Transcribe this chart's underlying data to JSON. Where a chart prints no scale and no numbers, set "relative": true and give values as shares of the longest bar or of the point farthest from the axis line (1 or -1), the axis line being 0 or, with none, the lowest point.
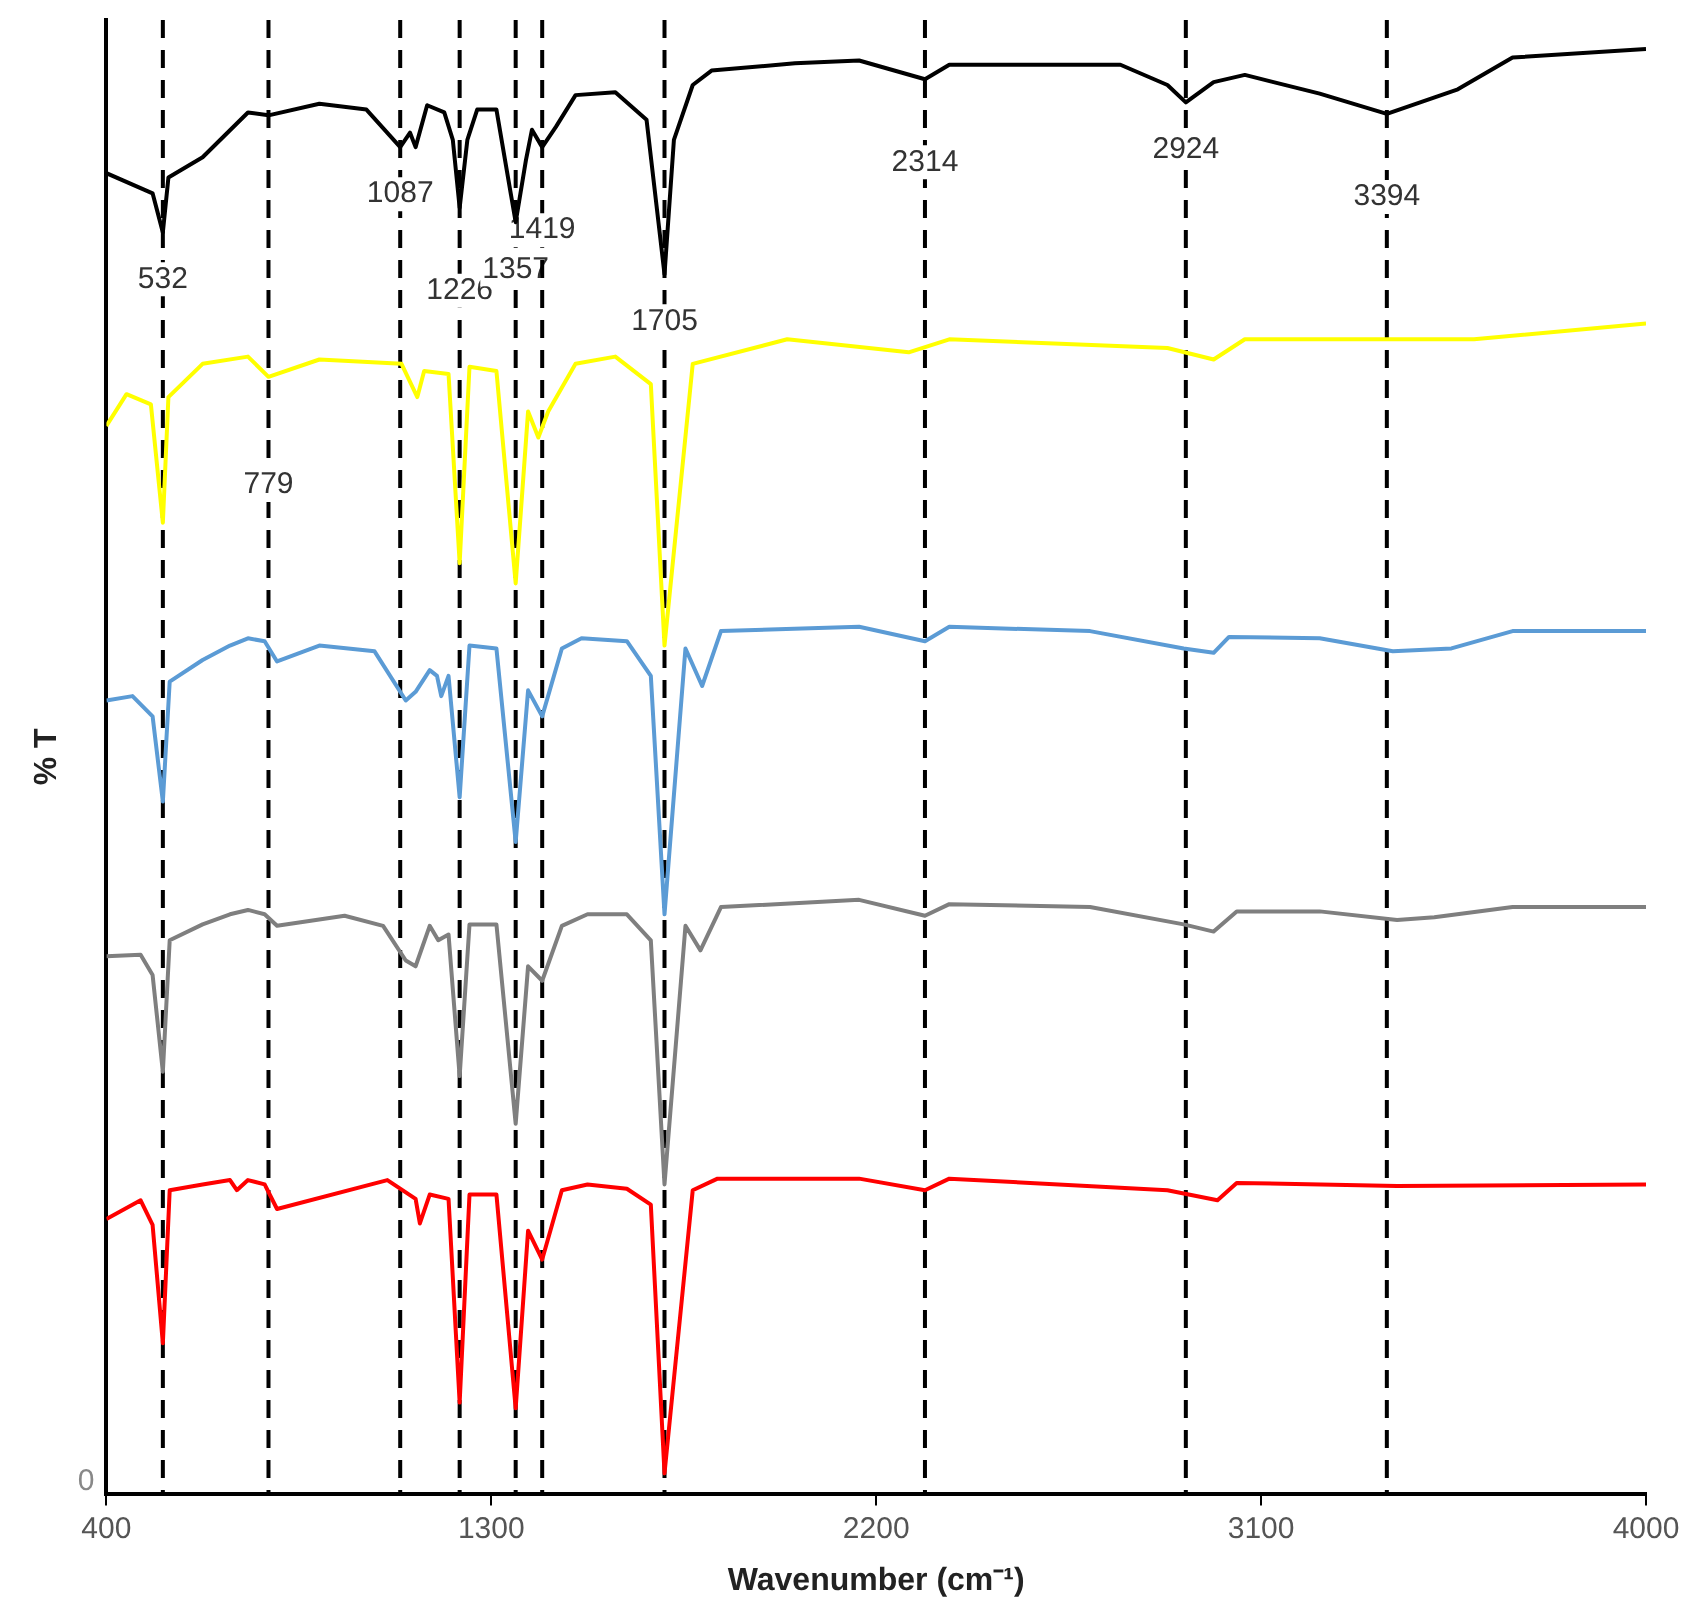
{
  "chart_data": {
    "type": "line",
    "xlabel": "Wavenumber (cm⁻¹)",
    "ylabel": "% T",
    "relative": true,
    "xlim": [
      400,
      4000
    ],
    "xticks": [
      400,
      1300,
      2200,
      3100,
      4000
    ],
    "grid": false,
    "legend": false,
    "marker": "none",
    "line_style": "solid",
    "annotations": [
      "0"
    ],
    "ref_lines": [
      {
        "axis": "x",
        "value": 532,
        "label": "532",
        "color": "#000000",
        "line_style": "dashed"
      },
      {
        "axis": "x",
        "value": 779,
        "label": "779",
        "color": "#000000",
        "line_style": "dashed"
      },
      {
        "axis": "x",
        "value": 1087,
        "label": "1087",
        "color": "#000000",
        "line_style": "dashed"
      },
      {
        "axis": "x",
        "value": 1226,
        "label": "1226",
        "color": "#000000",
        "line_style": "dashed"
      },
      {
        "axis": "x",
        "value": 1357,
        "label": "1357",
        "color": "#000000",
        "line_style": "dashed"
      },
      {
        "axis": "x",
        "value": 1419,
        "label": "1419",
        "color": "#000000",
        "line_style": "dashed"
      },
      {
        "axis": "x",
        "value": 1705,
        "label": "1705",
        "color": "#000000",
        "line_style": "dashed"
      },
      {
        "axis": "x",
        "value": 2314,
        "label": "2314",
        "color": "#000000",
        "line_style": "dashed"
      },
      {
        "axis": "x",
        "value": 2924,
        "label": "2924",
        "color": "#000000",
        "line_style": "dashed"
      },
      {
        "axis": "x",
        "value": 3394,
        "label": "3394",
        "color": "#000000",
        "line_style": "dashed"
      }
    ],
    "series": [
      {
        "color": "#000000",
        "x": [
          400,
          508,
          532,
          545,
          625,
          731,
          779,
          898,
          1008,
          1087,
          1110,
          1123,
          1150,
          1190,
          1210,
          1226,
          1244,
          1267,
          1312,
          1357,
          1381,
          1395,
          1419,
          1451,
          1497,
          1590,
          1663,
          1705,
          1727,
          1771,
          1815,
          2010,
          2160,
          2314,
          2371,
          2771,
          2881,
          2924,
          2989,
          3062,
          3237,
          3394,
          3560,
          3688,
          4000
        ],
        "values": [
          0.914,
          0.9,
          0.873,
          0.911,
          0.925,
          0.956,
          0.954,
          0.962,
          0.958,
          0.932,
          0.942,
          0.932,
          0.961,
          0.956,
          0.937,
          0.89,
          0.937,
          0.958,
          0.958,
          0.88,
          0.923,
          0.944,
          0.932,
          0.946,
          0.968,
          0.97,
          0.951,
          0.844,
          0.937,
          0.975,
          0.985,
          0.99,
          0.992,
          0.979,
          0.989,
          0.989,
          0.975,
          0.963,
          0.977,
          0.982,
          0.969,
          0.955,
          0.972,
          0.994,
          1
        ]
      },
      {
        "color": "#ffff00",
        "x": [
          400,
          447,
          504,
          532,
          545,
          625,
          731,
          779,
          898,
          1090,
          1127,
          1143,
          1200,
          1226,
          1249,
          1312,
          1357,
          1386,
          1410,
          1433,
          1497,
          1590,
          1673,
          1705,
          1771,
          1992,
          2276,
          2371,
          2881,
          2989,
          3062,
          3598,
          4000
        ],
        "values": [
          0.739,
          0.761,
          0.754,
          0.672,
          0.759,
          0.782,
          0.787,
          0.773,
          0.785,
          0.782,
          0.759,
          0.777,
          0.775,
          0.644,
          0.78,
          0.777,
          0.63,
          0.749,
          0.731,
          0.749,
          0.782,
          0.787,
          0.768,
          0.587,
          0.782,
          0.799,
          0.79,
          0.799,
          0.793,
          0.785,
          0.799,
          0.799,
          0.81
        ]
      },
      {
        "color": "#5b9bd5",
        "x": [
          400,
          461,
          508,
          532,
          548,
          625,
          689,
          731,
          770,
          799,
          898,
          1027,
          1100,
          1123,
          1156,
          1173,
          1183,
          1200,
          1226,
          1249,
          1312,
          1357,
          1386,
          1419,
          1465,
          1511,
          1617,
          1673,
          1705,
          1754,
          1793,
          1837,
          2160,
          2314,
          2371,
          2700,
          2919,
          2989,
          3025,
          3237,
          3408,
          3545,
          3688,
          4000
        ],
        "values": [
          0.549,
          0.552,
          0.538,
          0.479,
          0.562,
          0.577,
          0.587,
          0.592,
          0.59,
          0.576,
          0.587,
          0.583,
          0.549,
          0.555,
          0.57,
          0.566,
          0.552,
          0.566,
          0.482,
          0.587,
          0.585,
          0.451,
          0.556,
          0.538,
          0.585,
          0.592,
          0.59,
          0.566,
          0.401,
          0.585,
          0.559,
          0.597,
          0.6,
          0.59,
          0.6,
          0.597,
          0.585,
          0.582,
          0.593,
          0.592,
          0.583,
          0.585,
          0.597,
          0.597
        ]
      },
      {
        "color": "#7f7f7f",
        "x": [
          400,
          480,
          508,
          532,
          548,
          625,
          689,
          731,
          770,
          799,
          957,
          1047,
          1100,
          1123,
          1156,
          1176,
          1200,
          1226,
          1249,
          1312,
          1357,
          1386,
          1419,
          1465,
          1525,
          1617,
          1673,
          1705,
          1754,
          1789,
          1837,
          2160,
          2314,
          2371,
          2700,
          2919,
          2989,
          3043,
          3237,
          3418,
          3505,
          3688,
          4000
        ],
        "values": [
          0.372,
          0.373,
          0.359,
          0.292,
          0.383,
          0.394,
          0.401,
          0.404,
          0.401,
          0.393,
          0.4,
          0.393,
          0.369,
          0.365,
          0.393,
          0.383,
          0.387,
          0.289,
          0.394,
          0.394,
          0.256,
          0.365,
          0.355,
          0.393,
          0.401,
          0.401,
          0.383,
          0.214,
          0.393,
          0.376,
          0.406,
          0.411,
          0.4,
          0.408,
          0.406,
          0.394,
          0.389,
          0.403,
          0.403,
          0.397,
          0.399,
          0.406,
          0.406
        ]
      },
      {
        "color": "#ff0000",
        "x": [
          400,
          480,
          508,
          532,
          548,
          625,
          689,
          705,
          731,
          770,
          799,
          1057,
          1123,
          1133,
          1156,
          1200,
          1226,
          1249,
          1312,
          1357,
          1386,
          1419,
          1465,
          1525,
          1617,
          1673,
          1705,
          1771,
          1829,
          2160,
          2314,
          2371,
          2881,
          2998,
          3043,
          3418,
          4000
        ],
        "values": [
          0.19,
          0.203,
          0.186,
          0.104,
          0.21,
          0.214,
          0.217,
          0.21,
          0.217,
          0.214,
          0.197,
          0.217,
          0.204,
          0.187,
          0.207,
          0.204,
          0.063,
          0.207,
          0.207,
          0.059,
          0.182,
          0.162,
          0.21,
          0.214,
          0.211,
          0.2,
          0.014,
          0.21,
          0.218,
          0.218,
          0.21,
          0.218,
          0.21,
          0.203,
          0.215,
          0.213,
          0.214
        ]
      }
    ]
  }
}
